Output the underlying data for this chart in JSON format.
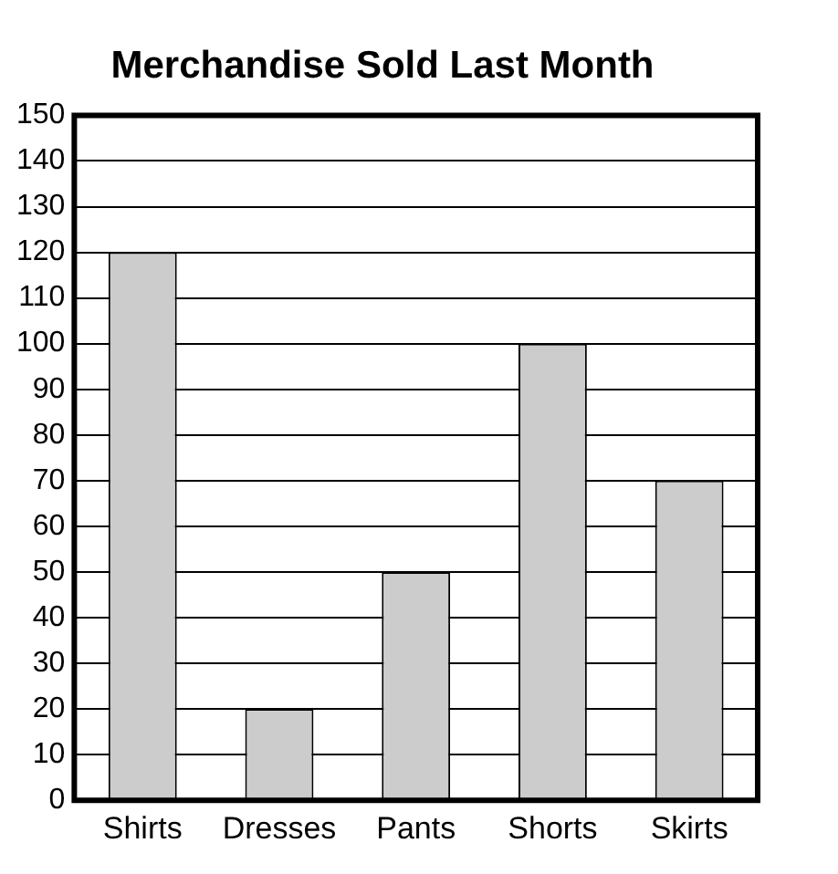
{
  "chart_data": {
    "type": "bar",
    "title": "Merchandise Sold Last Month",
    "categories": [
      "Shirts",
      "Dresses",
      "Pants",
      "Shorts",
      "Skirts"
    ],
    "values": [
      120,
      20,
      50,
      100,
      70
    ],
    "color": "#cccccc",
    "ylim": [
      0,
      150
    ],
    "yticks": [
      0,
      10,
      20,
      30,
      40,
      50,
      60,
      70,
      80,
      90,
      100,
      110,
      120,
      130,
      140,
      150
    ],
    "grid": "y",
    "legend": false
  }
}
